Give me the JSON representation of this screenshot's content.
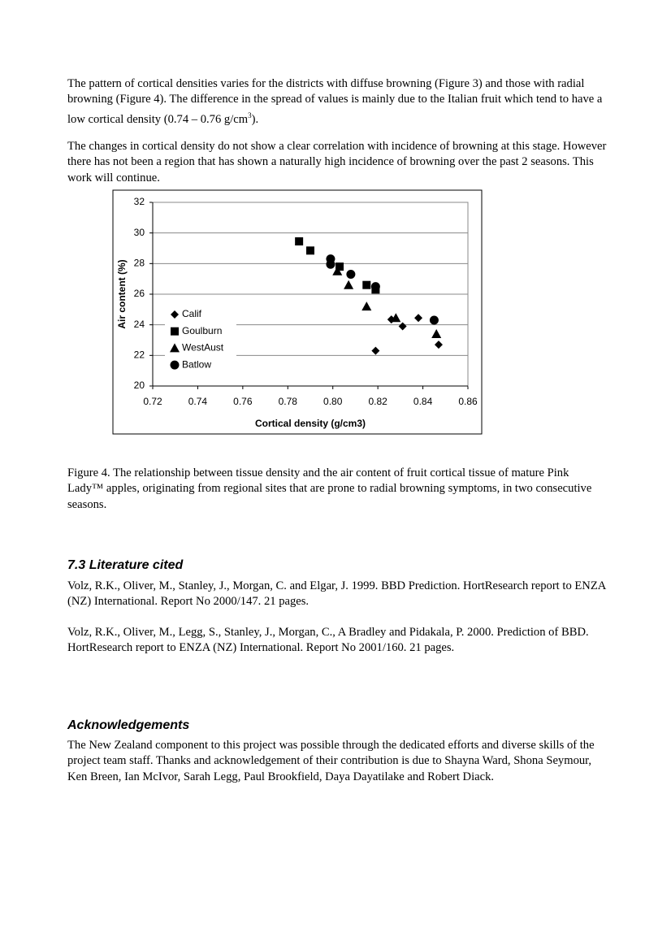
{
  "paragraphs": [
    {
      "text": "The pattern of cortical densities varies for the districts with diffuse browning (Figure 3) and those with radial browning (Figure 4).  The difference in the spread of values is mainly due to the Italian fruit which tend to have a low cortical density (0.74 – 0.76 g/cm",
      "sup": "3",
      "tail": ")."
    },
    {
      "text": "The changes in cortical density do not show a clear correlation with incidence of browning at this stage. However there has not been a region that has shown a naturally high incidence of browning over the past 2 seasons.  This work will continue."
    }
  ],
  "chart_data": {
    "type": "scatter",
    "x_label": "Cortical density (g/cm3)",
    "y_label": "Air content (%)",
    "xlim": [
      0.72,
      0.86
    ],
    "ylim": [
      20,
      32
    ],
    "xticks": [
      0.72,
      0.74,
      0.76,
      0.78,
      {
        "value": 0.8,
        "label": "0.80"
      },
      0.82,
      0.84,
      0.86
    ],
    "yticks": [
      20,
      22,
      24,
      26,
      28,
      30,
      32
    ],
    "grid": "y",
    "legend": "left",
    "series": [
      {
        "name": "Calif",
        "color": "#000000",
        "marker": "diamond",
        "x": [
          0.826,
          0.831,
          0.838,
          0.819,
          0.847
        ],
        "values": [
          24.35,
          23.9,
          24.45,
          22.3,
          22.7
        ]
      },
      {
        "name": "Goulburn",
        "color": "#000000",
        "marker": "square",
        "x": [
          0.785,
          0.79,
          0.803,
          0.815,
          0.819
        ],
        "values": [
          29.45,
          28.85,
          27.8,
          26.6,
          26.3
        ]
      },
      {
        "name": "WestAust",
        "color": "#000000",
        "marker": "triangle",
        "x": [
          0.802,
          0.807,
          0.815,
          0.828,
          0.846
        ],
        "values": [
          27.5,
          26.6,
          25.2,
          24.45,
          23.4
        ]
      },
      {
        "name": "Batlow",
        "color": "#000000",
        "marker": "circle",
        "x": [
          0.799,
          0.799,
          0.808,
          0.819,
          0.845
        ],
        "values": [
          28.3,
          27.95,
          27.3,
          26.5,
          24.3
        ]
      }
    ]
  },
  "caption": "Figure 4.  The relationship between tissue density and the air content of fruit cortical tissue of mature Pink Lady™ apples, originating from regional sites that are prone to radial browning symptoms, in two consecutive seasons.",
  "literature": {
    "heading": "7.3 Literature cited",
    "references": [
      "Volz, R.K., Oliver, M., Stanley, J., Morgan, C. and Elgar, J.  1999.  BBD Prediction. HortResearch report to ENZA (NZ) International.  Report No 2000/147. 21 pages.",
      "Volz, R.K., Oliver, M., Legg, S., Stanley, J., Morgan, C., A Bradley and Pidakala, P.  2000.  Prediction of BBD. HortResearch report to ENZA (NZ) International.  Report No 2001/160. 21 pages."
    ]
  },
  "acknowledgements": {
    "heading": "Acknowledgements",
    "text": "The New Zealand component to this project was possible through the dedicated efforts and diverse skills of the project team staff.  Thanks and acknowledgement of their contribution is due to Shayna Ward, Shona Seymour, Ken Breen, Ian McIvor, Sarah Legg, Paul Brookfield, Daya Dayatilake and Robert Diack."
  }
}
